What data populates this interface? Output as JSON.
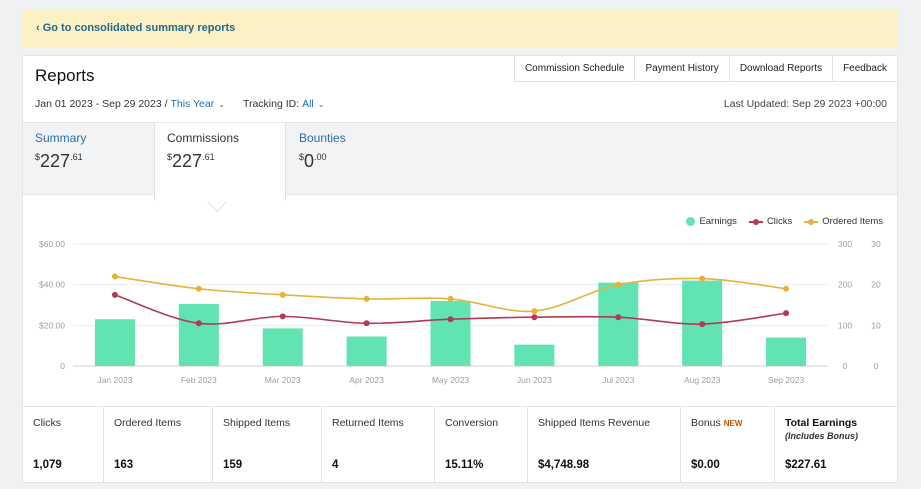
{
  "banner": {
    "link": "‹ Go to consolidated summary reports"
  },
  "header": {
    "title": "Reports",
    "links": [
      "Commission Schedule",
      "Payment History",
      "Download Reports",
      "Feedback"
    ]
  },
  "filters": {
    "date_range": "Jan 01 2023 - Sep 29 2023 /",
    "period": "This Year",
    "tracking_label": "Tracking ID:",
    "tracking_value": "All",
    "last_updated": "Last Updated: Sep 29 2023 +00:00"
  },
  "tabs": [
    {
      "label": "Summary",
      "currency": "$",
      "whole": "227",
      "cents": ".61"
    },
    {
      "label": "Commissions",
      "currency": "$",
      "whole": "227",
      "cents": ".61"
    },
    {
      "label": "Bounties",
      "currency": "$",
      "whole": "0",
      "cents": ".00"
    }
  ],
  "legend": {
    "earnings": "Earnings",
    "clicks": "Clicks",
    "ordered": "Ordered Items"
  },
  "colors": {
    "earnings": "#62e3b2",
    "clicks": "#b23a54",
    "ordered": "#e2b43c",
    "accent": "#1f6fb0"
  },
  "chart_data": {
    "type": "bar",
    "categories": [
      "Jan 2023",
      "Feb 2023",
      "Mar 2023",
      "Apr 2023",
      "May 2023",
      "Jun 2023",
      "Jul 2023",
      "Aug 2023",
      "Sep 2023"
    ],
    "series": [
      {
        "name": "Earnings",
        "type": "bar",
        "axis": "left",
        "values": [
          23,
          30.5,
          18.5,
          14.5,
          32,
          10.5,
          41,
          42,
          14
        ]
      },
      {
        "name": "Clicks",
        "type": "line",
        "axis": "right-1",
        "values": [
          175,
          105,
          122,
          105,
          115,
          120,
          120,
          103,
          130
        ]
      },
      {
        "name": "Ordered Items",
        "type": "line",
        "axis": "right-2",
        "values": [
          22,
          19,
          17.5,
          16.5,
          16.5,
          13.5,
          20,
          21.5,
          19
        ]
      }
    ],
    "y_left": {
      "ticks": [
        "$60.00",
        "$40.00",
        "$20.00",
        "0"
      ],
      "ylim": [
        0,
        60
      ]
    },
    "y_right_1": {
      "ticks": [
        "300",
        "200",
        "100",
        "0"
      ],
      "ylim": [
        0,
        300
      ]
    },
    "y_right_2": {
      "ticks": [
        "30",
        "20",
        "10",
        "0"
      ],
      "ylim": [
        0,
        30
      ]
    },
    "legend_position": "top-right",
    "grid": true
  },
  "stats": [
    {
      "label": "Clicks",
      "value": "1,079"
    },
    {
      "label": "Ordered Items",
      "value": "163"
    },
    {
      "label": "Shipped Items",
      "value": "159"
    },
    {
      "label": "Returned Items",
      "value": "4"
    },
    {
      "label": "Conversion",
      "value": "15.11%"
    },
    {
      "label": "Shipped Items Revenue",
      "value": "$4,748.98"
    },
    {
      "label": "Bonus",
      "badge": "NEW",
      "value": "$0.00"
    },
    {
      "label": "Total Earnings",
      "sub": "(Includes Bonus)",
      "value": "$227.61"
    }
  ]
}
